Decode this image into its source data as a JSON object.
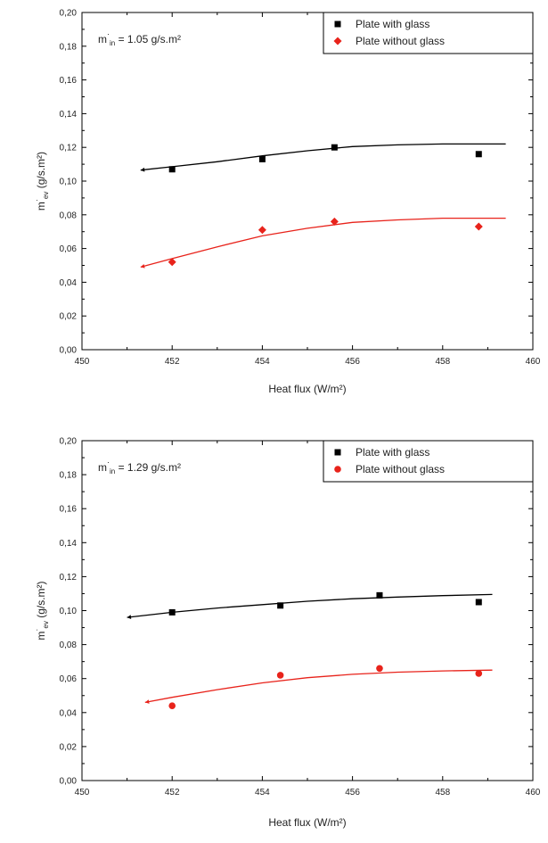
{
  "chart_data": [
    {
      "type": "scatter",
      "xlabel": "Heat flux (W/m²)",
      "ylabel_main": "m",
      "ylabel_sup": "·",
      "ylabel_sub": "ev",
      "ylabel_unit": "(g/s.m²)",
      "xlim": [
        450,
        460
      ],
      "ylim": [
        0,
        0.2
      ],
      "x_ticks": [
        "450",
        "452",
        "454",
        "456",
        "458",
        "460"
      ],
      "y_ticks": [
        "0,00",
        "0,02",
        "0,04",
        "0,06",
        "0,08",
        "0,10",
        "0,12",
        "0,14",
        "0,16",
        "0,18",
        "0,20"
      ],
      "annotation": {
        "main": "m",
        "sup": "·",
        "sub": "in",
        "rest": " = 1.05 g/s.m²"
      },
      "legend_position": "top-right",
      "series": [
        {
          "name": "Plate with glass",
          "color": "#000000",
          "marker": "square",
          "points": [
            [
              452,
              0.107
            ],
            [
              454,
              0.113
            ],
            [
              455.6,
              0.12
            ],
            [
              458.8,
              0.116
            ]
          ],
          "fit": [
            [
              451.3,
              0.1065
            ],
            [
              452,
              0.1085
            ],
            [
              453,
              0.1115
            ],
            [
              454,
              0.115
            ],
            [
              455,
              0.118
            ],
            [
              456,
              0.1205
            ],
            [
              457,
              0.1215
            ],
            [
              458,
              0.122
            ],
            [
              459.4,
              0.122
            ]
          ]
        },
        {
          "name": "Plate without glass",
          "color": "#e8231b",
          "marker": "diamond",
          "points": [
            [
              452,
              0.052
            ],
            [
              454,
              0.071
            ],
            [
              455.6,
              0.076
            ],
            [
              458.8,
              0.073
            ]
          ],
          "fit": [
            [
              451.3,
              0.049
            ],
            [
              452,
              0.054
            ],
            [
              453,
              0.061
            ],
            [
              454,
              0.0675
            ],
            [
              455,
              0.072
            ],
            [
              456,
              0.0755
            ],
            [
              457,
              0.077
            ],
            [
              458,
              0.078
            ],
            [
              459.4,
              0.078
            ]
          ]
        }
      ]
    },
    {
      "type": "scatter",
      "xlabel": "Heat flux (W/m²)",
      "ylabel_main": "m",
      "ylabel_sup": "·",
      "ylabel_sub": "ev",
      "ylabel_unit": "(g/s.m²)",
      "xlim": [
        450,
        460
      ],
      "ylim": [
        0,
        0.2
      ],
      "x_ticks": [
        "450",
        "452",
        "454",
        "456",
        "458",
        "460"
      ],
      "y_ticks": [
        "0,00",
        "0,02",
        "0,04",
        "0,06",
        "0,08",
        "0,10",
        "0,12",
        "0,14",
        "0,16",
        "0,18",
        "0,20"
      ],
      "annotation": {
        "main": "m",
        "sup": "·",
        "sub": "in",
        "rest": " = 1.29 g/s.m²"
      },
      "legend_position": "top-right",
      "series": [
        {
          "name": "Plate with glass",
          "color": "#000000",
          "marker": "square",
          "points": [
            [
              452,
              0.099
            ],
            [
              454.4,
              0.103
            ],
            [
              456.6,
              0.109
            ],
            [
              458.8,
              0.105
            ]
          ],
          "fit": [
            [
              451,
              0.096
            ],
            [
              452,
              0.099
            ],
            [
              453,
              0.1015
            ],
            [
              454,
              0.1035
            ],
            [
              455,
              0.1055
            ],
            [
              456,
              0.107
            ],
            [
              457,
              0.108
            ],
            [
              458,
              0.1088
            ],
            [
              459.1,
              0.1095
            ]
          ]
        },
        {
          "name": "Plate without glass",
          "color": "#e8231b",
          "marker": "circle",
          "points": [
            [
              452,
              0.044
            ],
            [
              454.4,
              0.062
            ],
            [
              456.6,
              0.066
            ],
            [
              458.8,
              0.063
            ]
          ],
          "fit": [
            [
              451.4,
              0.046
            ],
            [
              452,
              0.049
            ],
            [
              453,
              0.0535
            ],
            [
              454,
              0.0575
            ],
            [
              455,
              0.0605
            ],
            [
              456,
              0.0625
            ],
            [
              457,
              0.0638
            ],
            [
              458,
              0.0645
            ],
            [
              459.1,
              0.065
            ]
          ]
        }
      ]
    }
  ]
}
